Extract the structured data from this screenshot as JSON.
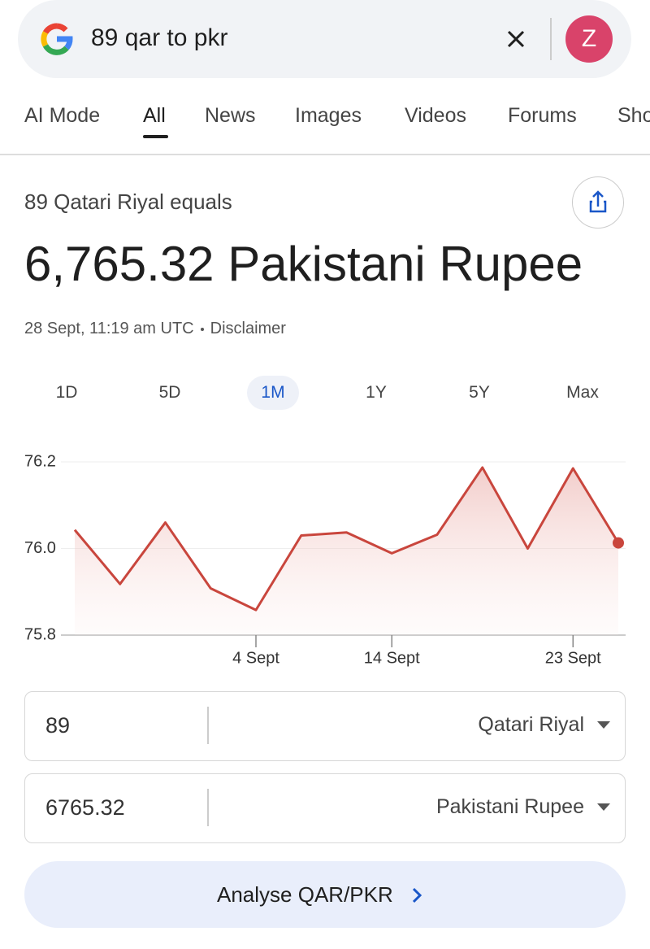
{
  "search": {
    "query": "89 qar to pkr",
    "avatar": "Z"
  },
  "tabs": [
    "AI Mode",
    "All",
    "News",
    "Images",
    "Videos",
    "Forums",
    "Sho"
  ],
  "result": {
    "subtitle": "89 Qatari Riyal equals",
    "amount": "6,765.32 Pakistani Rupee",
    "timestamp": "28 Sept, 11:19 am UTC",
    "disclaimer": "Disclaimer"
  },
  "ranges": [
    "1D",
    "5D",
    "1M",
    "1Y",
    "5Y",
    "Max"
  ],
  "chart_data": {
    "type": "line",
    "categories": [
      null,
      null,
      null,
      null,
      "4 Sept",
      null,
      null,
      "14 Sept",
      null,
      null,
      null,
      "23 Sept",
      null
    ],
    "values": [
      76.043,
      75.918,
      76.06,
      75.908,
      75.858,
      76.03,
      76.037,
      75.989,
      76.032,
      76.187,
      76.0,
      76.185,
      76.013
    ],
    "color": "#c9463d",
    "ylim": [
      75.8,
      76.2
    ],
    "yticks": [
      75.8,
      {
        "value": 76,
        "label": "76.0"
      },
      76.2
    ],
    "grid": true
  },
  "converter": {
    "rows": [
      {
        "amount": "89",
        "currency": "Qatari Riyal"
      },
      {
        "amount": "6765.32",
        "currency": "Pakistani Rupee"
      }
    ],
    "button": "Analyse QAR/PKR"
  }
}
